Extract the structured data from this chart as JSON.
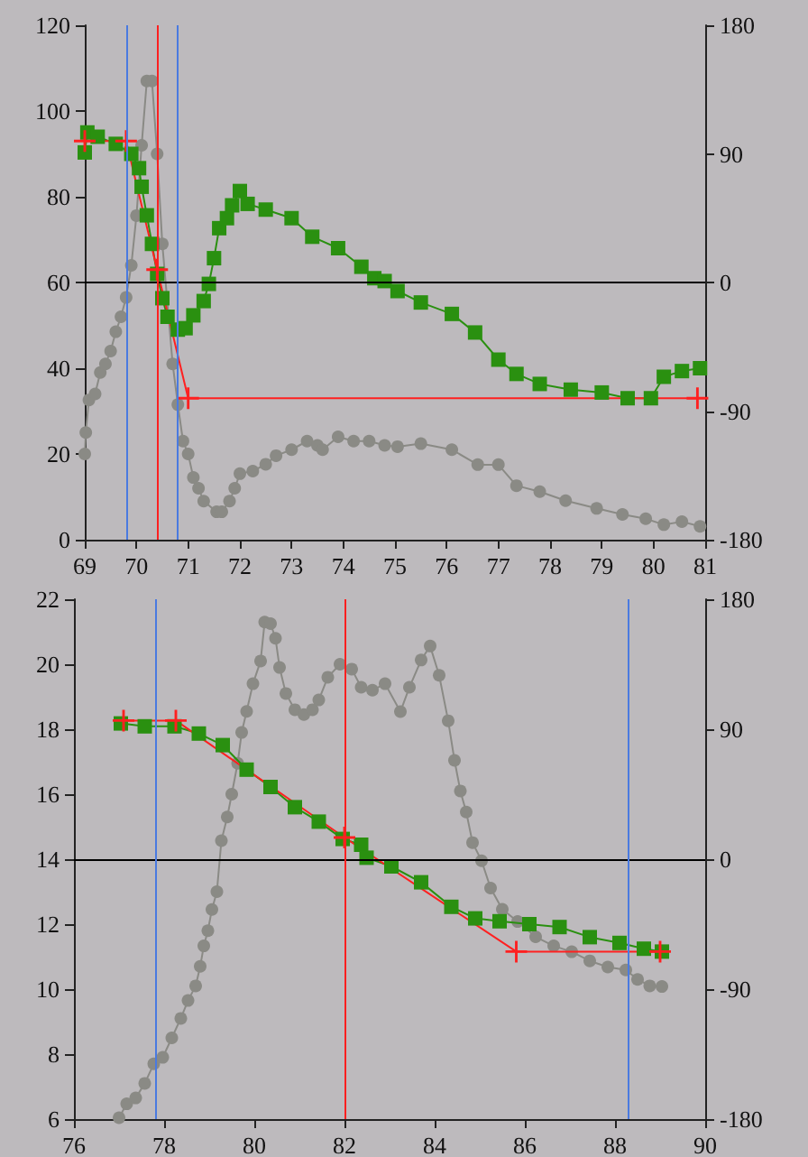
{
  "chart_data": [
    {
      "type": "line",
      "grid": false,
      "xlim": [
        69,
        81
      ],
      "xticks": [
        69,
        70,
        71,
        72,
        73,
        74,
        75,
        76,
        77,
        78,
        79,
        80,
        81
      ],
      "ylim": [
        0,
        120
      ],
      "yticks": [
        0,
        20,
        40,
        60,
        80,
        100,
        120
      ],
      "y2lim": [
        -180,
        180
      ],
      "y2ticks": [
        -180,
        -90,
        0,
        90,
        180
      ],
      "series": [
        {
          "color": "#8a8a85",
          "marker": "circle",
          "x": [
            69.0,
            69.02,
            69.08,
            69.2,
            69.3,
            69.4,
            69.5,
            69.6,
            69.7,
            69.8,
            69.9,
            70.0,
            70.1,
            70.2,
            70.3,
            70.4,
            70.5,
            70.7,
            70.8,
            70.9,
            71.0,
            71.1,
            71.2,
            71.3,
            71.55,
            71.65,
            71.8,
            71.9,
            72.0,
            72.25,
            72.5,
            72.7,
            73.0,
            73.3,
            73.5,
            73.6,
            73.9,
            74.2,
            74.5,
            74.8,
            75.05,
            75.5,
            76.1,
            76.6,
            77.0,
            77.35,
            77.8,
            78.3,
            78.9,
            79.4,
            79.85,
            80.2,
            80.55,
            80.9
          ],
          "values": [
            20,
            25,
            32.6,
            34,
            39,
            41,
            44,
            48.5,
            52,
            56.5,
            64,
            75.6,
            92,
            107,
            107,
            90,
            69,
            41,
            31.5,
            23,
            20,
            14.5,
            12,
            9,
            6.5,
            6.5,
            9,
            12,
            15.4,
            16,
            17.6,
            19.6,
            21,
            23,
            22,
            21,
            24,
            23,
            23,
            22,
            21.7,
            22.4,
            21,
            17.5,
            17.5,
            12.6,
            11.2,
            9.1,
            7.3,
            5.9,
            4.9,
            3.5,
            4.2,
            3.1
          ]
        },
        {
          "color": "#2a9010",
          "marker": "square",
          "axis": "y2",
          "x": [
            69.0,
            69.05,
            69.25,
            69.6,
            69.9,
            70.05,
            70.1,
            70.2,
            70.3,
            70.4,
            70.5,
            70.6,
            70.8,
            70.95,
            71.1,
            71.3,
            71.4,
            71.5,
            71.6,
            71.75,
            71.85,
            72.0,
            72.15,
            72.5,
            73.0,
            73.4,
            73.9,
            74.35,
            74.6,
            74.8,
            75.05,
            75.5,
            76.1,
            76.55,
            77.0,
            77.35,
            77.8,
            78.4,
            79.0,
            79.5,
            79.95,
            80.2,
            80.55,
            80.9
          ],
          "values": [
            91,
            105,
            102,
            97,
            90,
            80,
            67,
            47,
            27,
            6,
            -11,
            -24,
            -33,
            -32,
            -23,
            -13,
            -1,
            17,
            38,
            45,
            54,
            64,
            55,
            51,
            45,
            32,
            24,
            11,
            3,
            1,
            -6,
            -14,
            -22,
            -35,
            -54,
            -64,
            -71,
            -75,
            -77,
            -81,
            -81,
            -66,
            -62,
            -60
          ]
        },
        {
          "color": "#ff2020",
          "marker": "cross",
          "axis": "y2",
          "x": [
            69.0,
            69.8,
            70.4,
            71.0,
            80.85
          ],
          "values": [
            99,
            99,
            9,
            -81,
            -81
          ]
        }
      ],
      "ref_lines": [
        {
          "axis": "y2",
          "value": 0,
          "color": "#000000"
        },
        {
          "axis": "x",
          "value": 69.8,
          "color": "#4a7ae0"
        },
        {
          "axis": "x",
          "value": 70.4,
          "color": "#ff2020"
        },
        {
          "axis": "x",
          "value": 70.8,
          "color": "#4a7ae0"
        }
      ]
    },
    {
      "type": "line",
      "grid": false,
      "xlim": [
        76,
        90
      ],
      "xticks": [
        76,
        78,
        80,
        82,
        84,
        86,
        88,
        90
      ],
      "ylim": [
        6,
        22
      ],
      "yticks": [
        6,
        8,
        10,
        12,
        14,
        16,
        18,
        20,
        22
      ],
      "y2lim": [
        -180,
        180
      ],
      "y2ticks": [
        -180,
        -90,
        0,
        90,
        180
      ],
      "series": [
        {
          "color": "#8a8a85",
          "marker": "circle",
          "x": [
            77.0,
            77.17,
            77.37,
            77.57,
            77.77,
            77.97,
            78.17,
            78.37,
            78.53,
            78.7,
            78.8,
            78.88,
            78.97,
            79.06,
            79.17,
            79.27,
            79.4,
            79.5,
            79.63,
            79.72,
            79.83,
            79.97,
            80.14,
            80.23,
            80.36,
            80.47,
            80.56,
            80.7,
            80.9,
            81.1,
            81.29,
            81.43,
            81.63,
            81.9,
            82.16,
            82.37,
            82.62,
            82.9,
            83.24,
            83.44,
            83.7,
            83.9,
            84.1,
            84.3,
            84.44,
            84.57,
            84.7,
            84.84,
            85.04,
            85.24,
            85.5,
            85.84,
            86.24,
            86.64,
            87.04,
            87.44,
            87.84,
            88.24,
            88.5,
            88.77,
            89.04
          ],
          "values": [
            6.04,
            6.47,
            6.65,
            7.1,
            7.7,
            7.9,
            8.5,
            9.1,
            9.65,
            10.1,
            10.7,
            11.33,
            11.8,
            12.45,
            13.0,
            14.57,
            15.3,
            16.0,
            16.95,
            17.9,
            18.55,
            19.4,
            20.1,
            21.3,
            21.25,
            20.8,
            19.9,
            19.1,
            18.6,
            18.45,
            18.6,
            18.9,
            19.6,
            20.0,
            19.85,
            19.29,
            19.2,
            19.4,
            18.54,
            19.29,
            20.13,
            20.56,
            19.66,
            18.26,
            17.04,
            16.1,
            15.45,
            14.51,
            13.95,
            13.11,
            12.46,
            12.08,
            11.61,
            11.33,
            11.15,
            10.87,
            10.68,
            10.59,
            10.3,
            10.1,
            10.08
          ]
        },
        {
          "color": "#2a9010",
          "marker": "square",
          "axis": "y2",
          "x": [
            77.04,
            77.57,
            78.23,
            78.77,
            79.3,
            79.83,
            80.36,
            80.9,
            81.43,
            81.96,
            82.37,
            82.49,
            83.04,
            83.7,
            84.37,
            84.9,
            85.44,
            86.1,
            86.77,
            87.44,
            88.1,
            88.64,
            89.04
          ],
          "values": [
            94,
            92,
            92,
            87,
            79,
            62,
            50,
            36,
            26,
            14,
            10,
            1,
            -5,
            -16,
            -33,
            -41,
            -43,
            -45,
            -47,
            -54,
            -58,
            -62,
            -64
          ]
        },
        {
          "color": "#ff2020",
          "marker": "cross",
          "axis": "y2",
          "x": [
            77.1,
            78.26,
            82.0,
            85.81,
            89.0
          ],
          "values": [
            96,
            96,
            15,
            -64,
            -64
          ]
        }
      ],
      "ref_lines": [
        {
          "axis": "y2",
          "value": 0,
          "color": "#000000"
        },
        {
          "axis": "x",
          "value": 77.8,
          "color": "#4a7ae0"
        },
        {
          "axis": "x",
          "value": 82,
          "color": "#ff2020"
        },
        {
          "axis": "x",
          "value": 88.3,
          "color": "#4a7ae0"
        }
      ]
    }
  ]
}
